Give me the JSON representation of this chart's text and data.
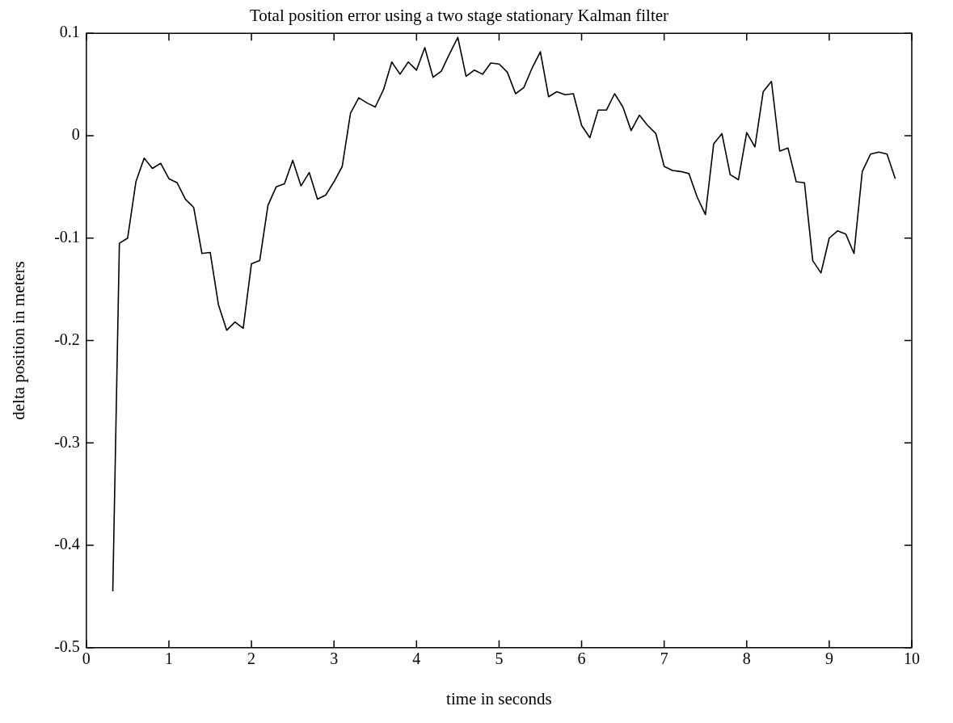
{
  "chart_data": {
    "type": "line",
    "title": "Total position error using a two stage stationary Kalman filter",
    "xlabel": "time in seconds",
    "ylabel": "delta position in meters",
    "x": [
      0.32,
      0.4,
      0.5,
      0.6,
      0.7,
      0.8,
      0.9,
      1.0,
      1.1,
      1.2,
      1.3,
      1.4,
      1.5,
      1.6,
      1.7,
      1.8,
      1.9,
      2.0,
      2.1,
      2.2,
      2.3,
      2.4,
      2.5,
      2.6,
      2.7,
      2.8,
      2.9,
      3.0,
      3.1,
      3.2,
      3.3,
      3.4,
      3.5,
      3.6,
      3.7,
      3.8,
      3.9,
      4.0,
      4.1,
      4.2,
      4.3,
      4.4,
      4.5,
      4.6,
      4.7,
      4.8,
      4.9,
      5.0,
      5.1,
      5.2,
      5.3,
      5.4,
      5.5,
      5.6,
      5.7,
      5.8,
      5.9,
      6.0,
      6.1,
      6.2,
      6.3,
      6.4,
      6.5,
      6.6,
      6.7,
      6.8,
      6.9,
      7.0,
      7.1,
      7.2,
      7.3,
      7.4,
      7.5,
      7.6,
      7.7,
      7.8,
      7.9,
      8.0,
      8.1,
      8.2,
      8.3,
      8.4,
      8.5,
      8.6,
      8.7,
      8.8,
      8.9,
      9.0,
      9.1,
      9.2,
      9.3,
      9.4,
      9.5,
      9.6,
      9.7,
      9.8
    ],
    "series": [
      {
        "color": "#000000",
        "values": [
          -0.445,
          -0.105,
          -0.1,
          -0.045,
          -0.022,
          -0.032,
          -0.027,
          -0.042,
          -0.046,
          -0.062,
          -0.07,
          -0.115,
          -0.114,
          -0.165,
          -0.19,
          -0.182,
          -0.188,
          -0.125,
          -0.122,
          -0.068,
          -0.05,
          -0.047,
          -0.024,
          -0.049,
          -0.036,
          -0.062,
          -0.058,
          -0.045,
          -0.03,
          0.022,
          0.037,
          0.032,
          0.028,
          0.045,
          0.072,
          0.06,
          0.072,
          0.064,
          0.086,
          0.057,
          0.063,
          0.08,
          0.096,
          0.058,
          0.064,
          0.06,
          0.071,
          0.07,
          0.062,
          0.041,
          0.047,
          0.066,
          0.082,
          0.038,
          0.043,
          0.04,
          0.041,
          0.01,
          -0.002,
          0.025,
          0.025,
          0.041,
          0.028,
          0.005,
          0.02,
          0.01,
          0.002,
          -0.03,
          -0.034,
          -0.035,
          -0.037,
          -0.06,
          -0.077,
          -0.008,
          0.002,
          -0.038,
          -0.043,
          0.003,
          -0.011,
          0.043,
          0.053,
          -0.015,
          -0.012,
          -0.045,
          -0.046,
          -0.122,
          -0.134,
          -0.1,
          -0.093,
          -0.096,
          -0.115,
          -0.035,
          -0.018,
          -0.016,
          -0.018,
          -0.042
        ]
      }
    ],
    "xlim": [
      0,
      10
    ],
    "ylim": [
      -0.5,
      0.1
    ],
    "xticks": [
      0,
      1,
      2,
      3,
      4,
      5,
      6,
      7,
      8,
      9,
      10
    ],
    "yticks": [
      -0.5,
      -0.4,
      -0.3,
      -0.2,
      -0.1,
      0,
      0.1
    ],
    "grid": false,
    "legend": false,
    "marker": "none",
    "line_style": "solid"
  }
}
